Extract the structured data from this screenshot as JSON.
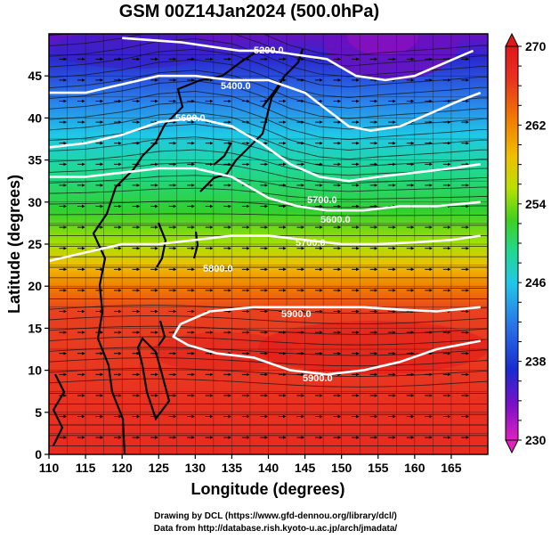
{
  "title": "GSM 00Z14Jan2024 (500.0hPa)",
  "credits": {
    "line1": "Drawing by DCL (https://www.gfd-dennou.org/library/dcl/)",
    "line2": "Data from http://database.rish.kyoto-u.ac.jp/arch/jmadata/"
  },
  "chart_data": {
    "type": "heatmap",
    "xlabel": "Longitude (degrees)",
    "ylabel": "Latitude  (degrees)",
    "xlim": [
      110,
      170
    ],
    "ylim": [
      0,
      50
    ],
    "x_ticks": [
      110,
      115,
      120,
      125,
      130,
      135,
      140,
      145,
      150,
      155,
      160,
      165
    ],
    "y_ticks": [
      0,
      5,
      10,
      15,
      20,
      25,
      30,
      35,
      40,
      45
    ],
    "colorbar": {
      "min": 230,
      "max": 270,
      "tick_labels": [
        230,
        238,
        246,
        254,
        262,
        270
      ],
      "colors": [
        "#e020c0",
        "#7a10c8",
        "#1a2bd0",
        "#2a7ae8",
        "#20c8e8",
        "#20d890",
        "#40d020",
        "#b8e000",
        "#f0c000",
        "#f07800",
        "#e83020",
        "#e01818"
      ]
    },
    "contour_labels": [
      "5200.0",
      "5400.0",
      "5600.0",
      "5700.0",
      "5800.0",
      "5900.0",
      "5900.0",
      "5600.0",
      "5700.0"
    ],
    "height_contours": [
      {
        "value": 5200,
        "points": [
          [
            120,
            49.5
          ],
          [
            128,
            49
          ],
          [
            136,
            48
          ],
          [
            140,
            48
          ],
          [
            144,
            47.5
          ],
          [
            148,
            47
          ],
          [
            150,
            46
          ],
          [
            152,
            45
          ],
          [
            156,
            44.5
          ],
          [
            160,
            45
          ],
          [
            164,
            46.5
          ],
          [
            168,
            48
          ]
        ]
      },
      {
        "value": 5400,
        "points": [
          [
            110,
            43
          ],
          [
            115,
            43
          ],
          [
            120,
            44
          ],
          [
            125,
            45
          ],
          [
            130,
            45
          ],
          [
            135,
            44.5
          ],
          [
            140,
            44.5
          ],
          [
            145,
            43
          ],
          [
            148,
            41
          ],
          [
            151,
            39
          ],
          [
            154,
            38.5
          ],
          [
            158,
            39
          ],
          [
            162,
            40.5
          ],
          [
            166,
            42
          ],
          [
            169,
            43
          ]
        ]
      },
      {
        "value": 5600,
        "points": [
          [
            110,
            36.5
          ],
          [
            115,
            37
          ],
          [
            120,
            38
          ],
          [
            125,
            39.5
          ],
          [
            130,
            40
          ],
          [
            135,
            39
          ],
          [
            139,
            37
          ],
          [
            143,
            34.5
          ],
          [
            147,
            33
          ],
          [
            151,
            32.5
          ],
          [
            155,
            33
          ],
          [
            160,
            33.5
          ],
          [
            165,
            34
          ],
          [
            169,
            34.5
          ]
        ]
      },
      {
        "value": 5700,
        "points": [
          [
            110,
            33
          ],
          [
            115,
            33
          ],
          [
            120,
            33.5
          ],
          [
            125,
            34
          ],
          [
            130,
            34
          ],
          [
            135,
            33
          ],
          [
            140,
            30.5
          ],
          [
            144,
            29.5
          ],
          [
            148,
            29
          ],
          [
            153,
            29
          ],
          [
            158,
            29.5
          ],
          [
            163,
            29.5
          ],
          [
            169,
            30
          ]
        ]
      },
      {
        "value": 5800,
        "points": [
          [
            110,
            23
          ],
          [
            115,
            24
          ],
          [
            120,
            25
          ],
          [
            125,
            25
          ],
          [
            130,
            25.5
          ],
          [
            135,
            26
          ],
          [
            140,
            26
          ],
          [
            145,
            25.5
          ],
          [
            150,
            25
          ],
          [
            155,
            25
          ],
          [
            160,
            25.2
          ],
          [
            165,
            25.5
          ],
          [
            169,
            26
          ]
        ]
      },
      {
        "value": 5900,
        "points": [
          [
            128,
            15.5
          ],
          [
            132,
            17
          ],
          [
            138,
            17.5
          ],
          [
            143,
            17.5
          ],
          [
            148,
            17.5
          ],
          [
            153,
            17.5
          ],
          [
            158,
            17.2
          ],
          [
            163,
            17
          ],
          [
            169,
            17.5
          ]
        ]
      },
      {
        "value": 5900,
        "points": [
          [
            128,
            15.5
          ],
          [
            127,
            14
          ],
          [
            129,
            13
          ],
          [
            133,
            12
          ],
          [
            138,
            11.5
          ],
          [
            143,
            10
          ],
          [
            148,
            9.5
          ],
          [
            153,
            10
          ],
          [
            158,
            11
          ],
          [
            163,
            12.5
          ],
          [
            169,
            13.5
          ]
        ]
      }
    ]
  }
}
